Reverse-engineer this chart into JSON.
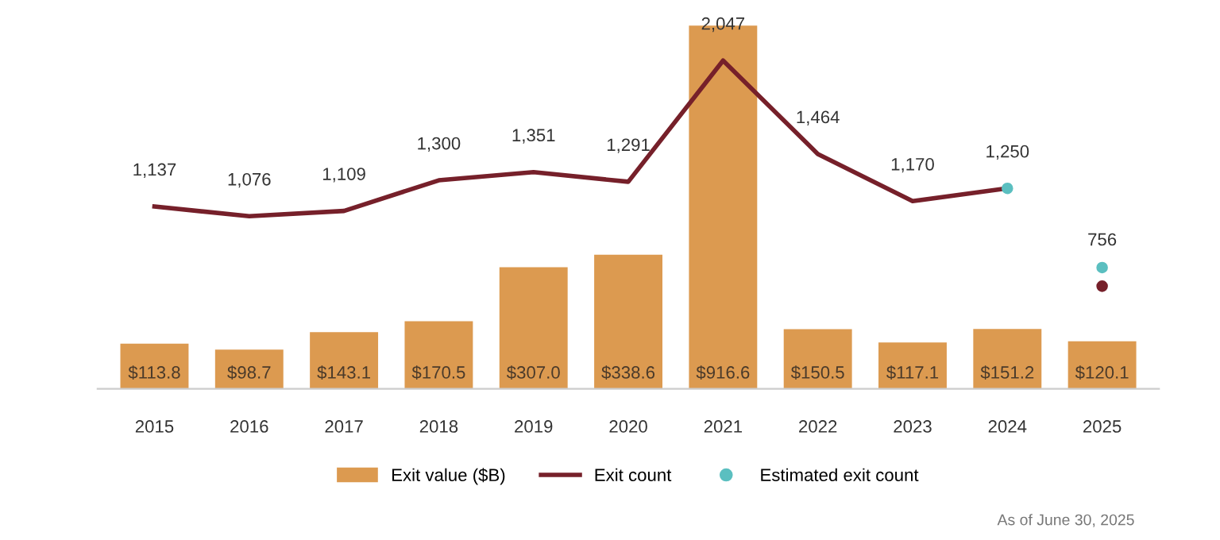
{
  "chart_data": {
    "type": "bar",
    "categories": [
      "2015",
      "2016",
      "2017",
      "2018",
      "2019",
      "2020",
      "2021",
      "2022",
      "2023",
      "2024",
      "2025"
    ],
    "series": [
      {
        "name": "Exit value ($B)",
        "color": "#dc9a50",
        "values": [
          113.8,
          98.7,
          143.1,
          170.5,
          307.0,
          338.6,
          916.6,
          150.5,
          117.1,
          151.2,
          120.1
        ],
        "value_labels": [
          "$113.8",
          "$98.7",
          "$143.1",
          "$170.5",
          "$307.0",
          "$338.6",
          "$916.6",
          "$150.5",
          "$117.1",
          "$151.2",
          "$120.1"
        ]
      },
      {
        "name": "Exit count",
        "type": "line",
        "marker": "none",
        "axis": "y2",
        "color": "#76202a",
        "values": [
          1137,
          1076,
          1109,
          1300,
          1351,
          1291,
          2047,
          1464,
          1170,
          1250,
          null
        ],
        "value_labels": [
          "1,137",
          "1,076",
          "1,109",
          "1,300",
          "1,351",
          "1,291",
          "2,047",
          "1,464",
          "1,170",
          "1,250",
          null
        ]
      },
      {
        "type": "scatter",
        "marker": "circle",
        "axis": "y2",
        "color": "#76202a",
        "values": [
          null,
          null,
          null,
          null,
          null,
          null,
          null,
          null,
          null,
          null,
          640
        ],
        "value_labels": [
          null,
          null,
          null,
          null,
          null,
          null,
          null,
          null,
          null,
          null,
          null
        ]
      },
      {
        "name": "Estimated exit count",
        "type": "scatter",
        "marker": "circle",
        "axis": "y2",
        "color": "#5bbfc0",
        "values": [
          null,
          null,
          null,
          null,
          null,
          null,
          null,
          null,
          null,
          1250,
          756
        ],
        "value_labels": [
          null,
          null,
          null,
          null,
          null,
          null,
          null,
          null,
          null,
          null,
          "756"
        ]
      }
    ],
    "tick_labels": "x",
    "grid": false,
    "legend": "bottom",
    "annotations": [
      "As of June 30, 2025"
    ]
  }
}
